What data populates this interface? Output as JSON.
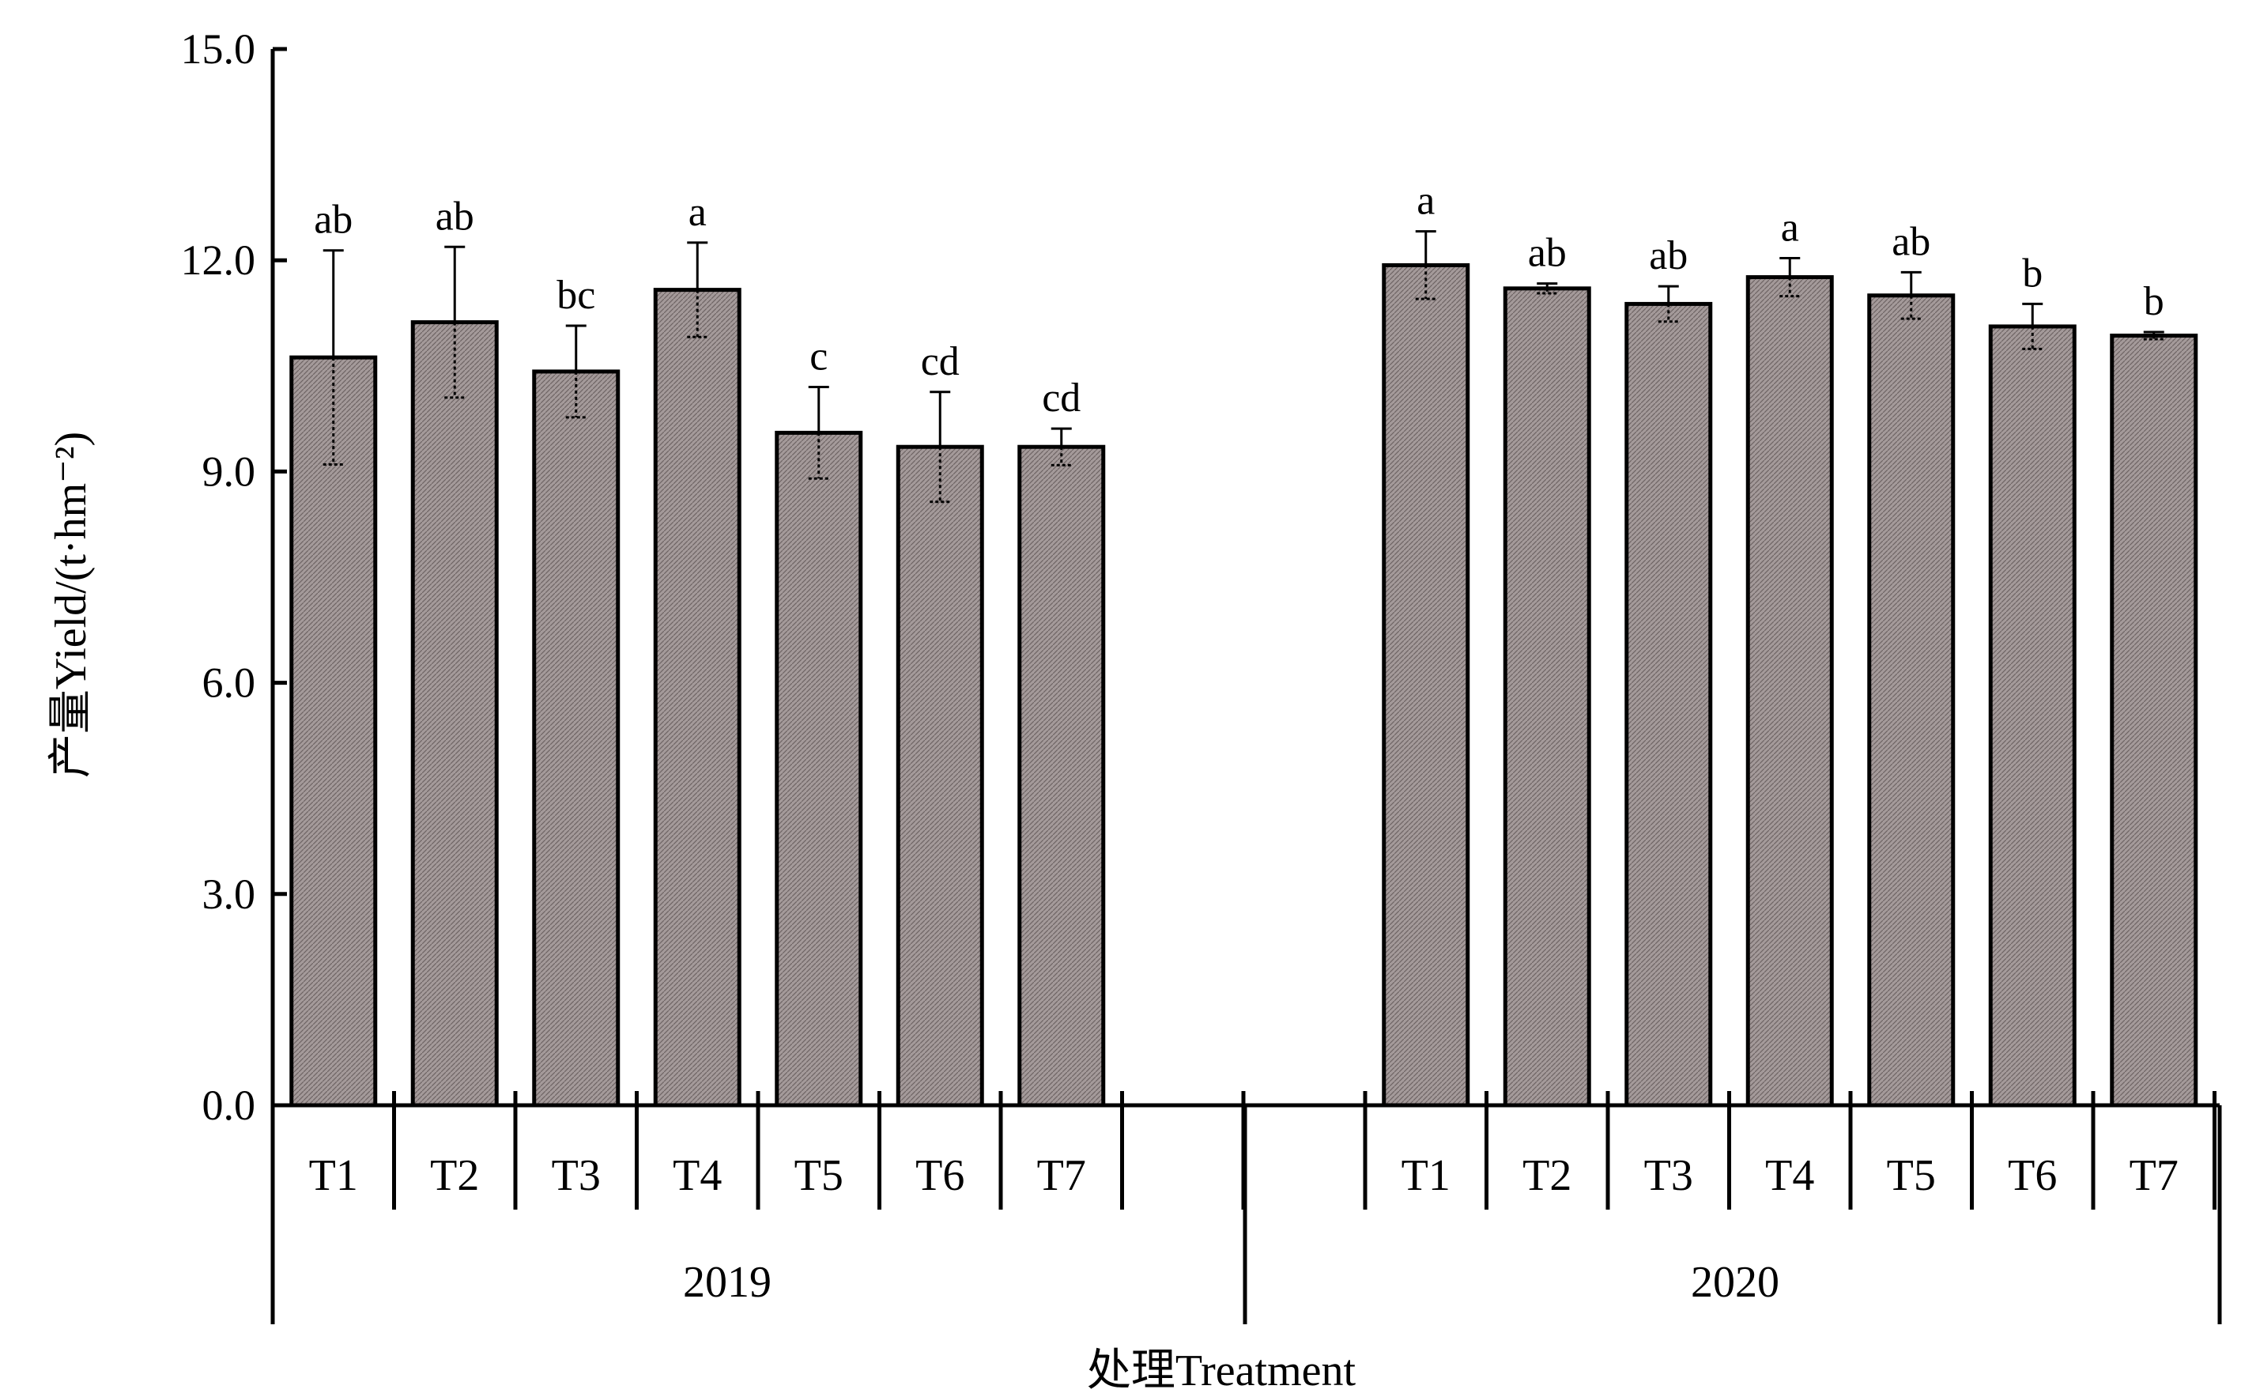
{
  "colors": {
    "bar_fill": "#9a9090",
    "bar_stroke": "#000000",
    "axis": "#000000"
  },
  "chart_data": {
    "type": "bar",
    "xlabel": "处理Treatment",
    "ylabel": "产量Yield/(t·hm⁻²)",
    "ylim": [
      0,
      15
    ],
    "yticks": [
      "0.0",
      "3.0",
      "6.0",
      "9.0",
      "12.0",
      "15.0"
    ],
    "grid": false,
    "groups": [
      {
        "name": "2019",
        "categories": [
          "T1",
          "T2",
          "T3",
          "T4",
          "T5",
          "T6",
          "T7"
        ],
        "values": [
          10.62,
          11.12,
          10.42,
          11.58,
          9.55,
          9.35,
          9.35
        ],
        "errors": [
          1.52,
          1.07,
          0.65,
          0.67,
          0.65,
          0.78,
          0.26
        ],
        "letters": [
          "ab",
          "ab",
          "bc",
          "a",
          "c",
          "cd",
          "cd"
        ]
      },
      {
        "name": "2020",
        "categories": [
          "T1",
          "T2",
          "T3",
          "T4",
          "T5",
          "T6",
          "T7"
        ],
        "values": [
          11.93,
          11.6,
          11.38,
          11.76,
          11.5,
          11.06,
          10.93
        ],
        "errors": [
          0.48,
          0.07,
          0.25,
          0.27,
          0.33,
          0.32,
          0.05
        ],
        "letters": [
          "a",
          "ab",
          "ab",
          "a",
          "ab",
          "b",
          "b"
        ]
      }
    ]
  }
}
